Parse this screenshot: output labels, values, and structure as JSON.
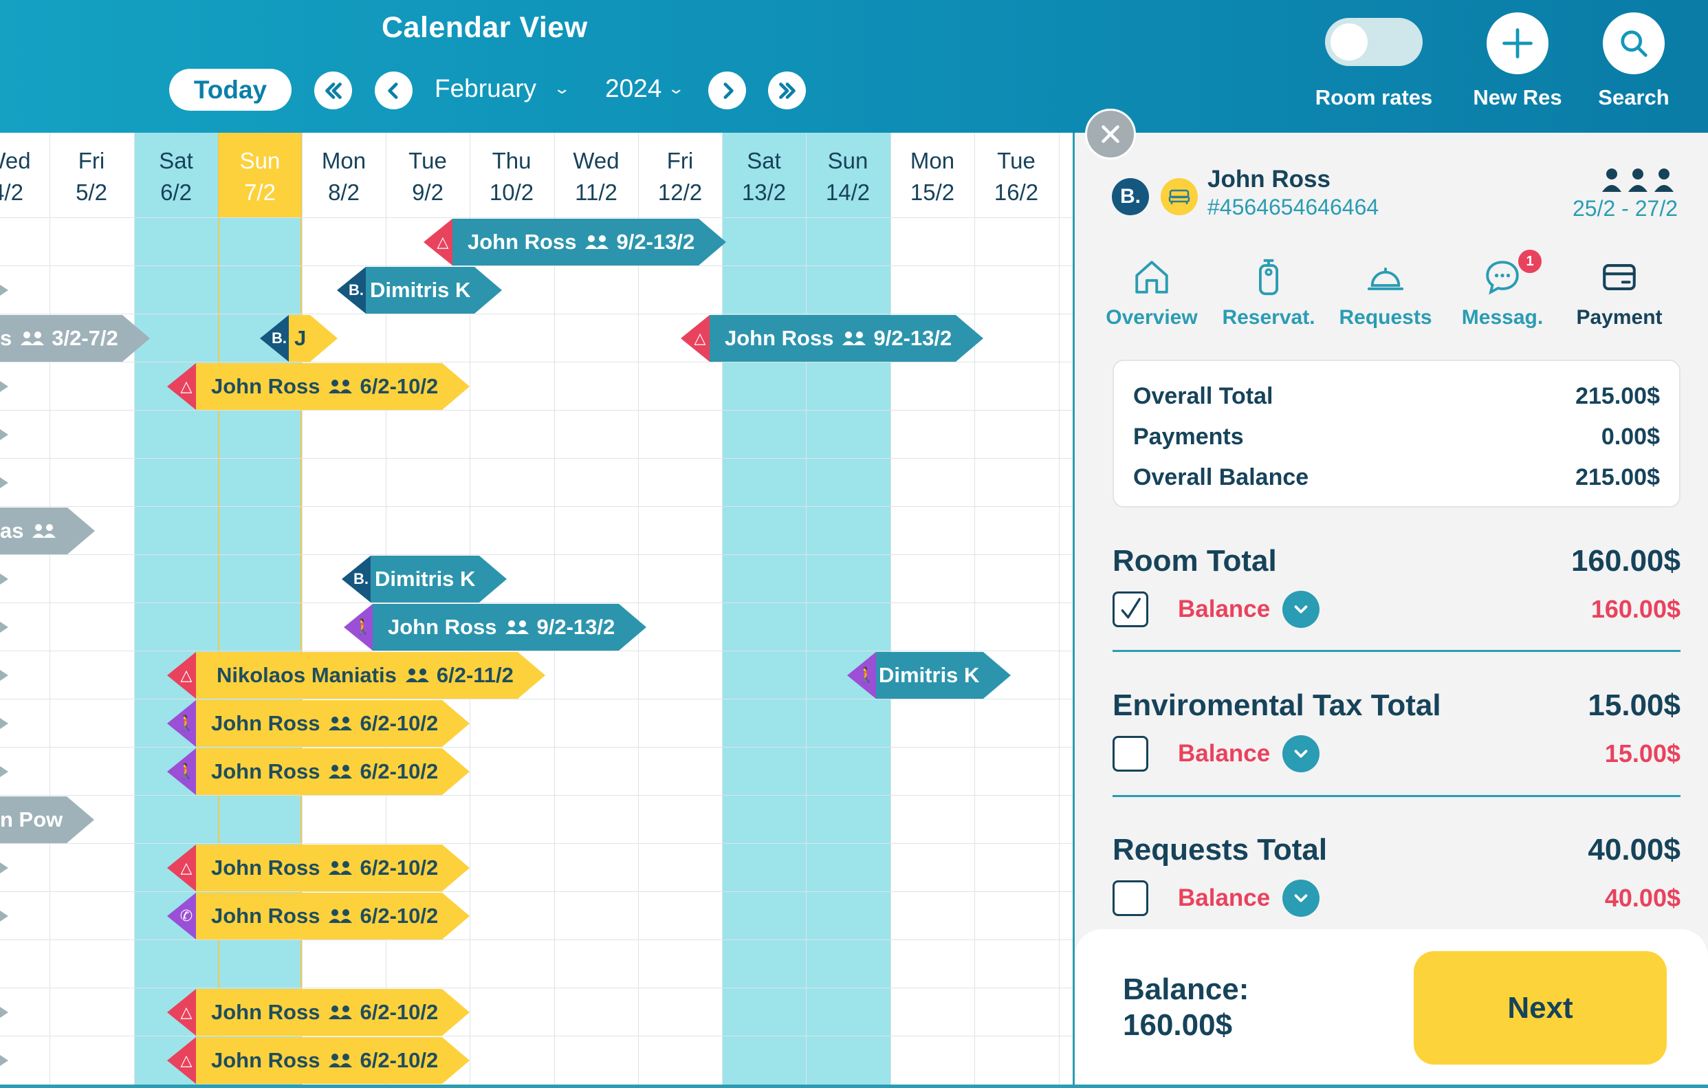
{
  "header": {
    "title": "Calendar View",
    "today_label": "Today",
    "month": "February",
    "year": "2024",
    "room_rates_label": "Room rates",
    "new_res_label": "New Res",
    "search_label": "Search"
  },
  "calendar": {
    "days": [
      {
        "dow": "Wed",
        "date": "4/2"
      },
      {
        "dow": "Fri",
        "date": "5/2"
      },
      {
        "dow": "Sat",
        "date": "6/2"
      },
      {
        "dow": "Sun",
        "date": "7/2"
      },
      {
        "dow": "Mon",
        "date": "8/2"
      },
      {
        "dow": "Tue",
        "date": "9/2"
      },
      {
        "dow": "Thu",
        "date": "10/2"
      },
      {
        "dow": "Wed",
        "date": "11/2"
      },
      {
        "dow": "Fri",
        "date": "12/2"
      },
      {
        "dow": "Sat",
        "date": "13/2"
      },
      {
        "dow": "Sun",
        "date": "14/2"
      },
      {
        "dow": "Mon",
        "date": "15/2"
      },
      {
        "dow": "Tue",
        "date": "16/2"
      }
    ],
    "reservations": [
      {
        "name": "John Ross",
        "dates": "9/2-13/2",
        "source": "airbnb",
        "color": "teal"
      },
      {
        "name": "Dimitris K",
        "dates": "",
        "source": "booking",
        "color": "teal"
      },
      {
        "name": "s",
        "dates": "3/2-7/2",
        "source": "",
        "color": "gray"
      },
      {
        "name": "J",
        "dates": "",
        "source": "booking",
        "color": "yellow"
      },
      {
        "name": "John Ross",
        "dates": "9/2-13/2",
        "source": "airbnb",
        "color": "teal"
      },
      {
        "name": "John Ross",
        "dates": "6/2-10/2",
        "source": "airbnb",
        "color": "yellow"
      },
      {
        "name": "as",
        "dates": "",
        "source": "",
        "color": "gray"
      },
      {
        "name": "Dimitris K",
        "dates": "",
        "source": "booking",
        "color": "teal"
      },
      {
        "name": "John Ross",
        "dates": "9/2-13/2",
        "source": "walk-in",
        "color": "teal"
      },
      {
        "name": "Nikolaos Maniatis",
        "dates": "6/2-11/2",
        "source": "airbnb",
        "color": "yellow"
      },
      {
        "name": "Dimitris K",
        "dates": "",
        "source": "walk-in",
        "color": "teal"
      },
      {
        "name": "John Ross",
        "dates": "6/2-10/2",
        "source": "walk-in",
        "color": "yellow"
      },
      {
        "name": "John Ross",
        "dates": "6/2-10/2",
        "source": "walk-in",
        "color": "yellow"
      },
      {
        "name": "n Pow",
        "dates": "",
        "source": "",
        "color": "gray"
      },
      {
        "name": "John Ross",
        "dates": "6/2-10/2",
        "source": "airbnb",
        "color": "yellow"
      },
      {
        "name": "John Ross",
        "dates": "6/2-10/2",
        "source": "phone",
        "color": "yellow"
      },
      {
        "name": "John Ross",
        "dates": "6/2-10/2",
        "source": "airbnb",
        "color": "yellow"
      },
      {
        "name": "John Ross",
        "dates": "6/2-10/2",
        "source": "airbnb",
        "color": "yellow"
      }
    ],
    "source_badge_text": "B."
  },
  "panel": {
    "guest_name": "John Ross",
    "reservation_number": "#4564654646464",
    "date_range": "25/2 - 27/2",
    "tabs": [
      {
        "label": "Overview",
        "icon": "home-icon"
      },
      {
        "label": "Reservat.",
        "icon": "key-tag-icon"
      },
      {
        "label": "Requests",
        "icon": "service-bell-icon"
      },
      {
        "label": "Messag.",
        "icon": "chat-icon",
        "badge": "1"
      },
      {
        "label": "Payment",
        "icon": "credit-card-icon",
        "active": true
      }
    ],
    "summary": {
      "overall_total_label": "Overall Total",
      "overall_total": "215.00$",
      "payments_label": "Payments",
      "payments": "0.00$",
      "overall_balance_label": "Overall Balance",
      "overall_balance": "215.00$"
    },
    "sections": [
      {
        "title": "Room Total",
        "total": "160.00$",
        "balance_label": "Balance",
        "balance": "160.00$",
        "checked": true
      },
      {
        "title": "Enviromental Tax Total",
        "total": "15.00$",
        "balance_label": "Balance",
        "balance": "15.00$",
        "checked": false
      },
      {
        "title": "Requests Total",
        "total": "40.00$",
        "balance_label": "Balance",
        "balance": "40.00$",
        "checked": false
      }
    ],
    "footer": {
      "balance_label": "Balance:",
      "balance_value": "160.00$",
      "next_label": "Next"
    }
  },
  "colors": {
    "header_blue": "#0e8db5",
    "teal": "#2c95ad",
    "yellow": "#fcd13c",
    "gray": "#9fb2b9",
    "airbnb_red": "#e9425d",
    "booking_navy": "#15577f",
    "walkin_purple": "#9b4fd6",
    "weekend_cyan": "#9de3ea",
    "navy_text": "#16435a"
  }
}
